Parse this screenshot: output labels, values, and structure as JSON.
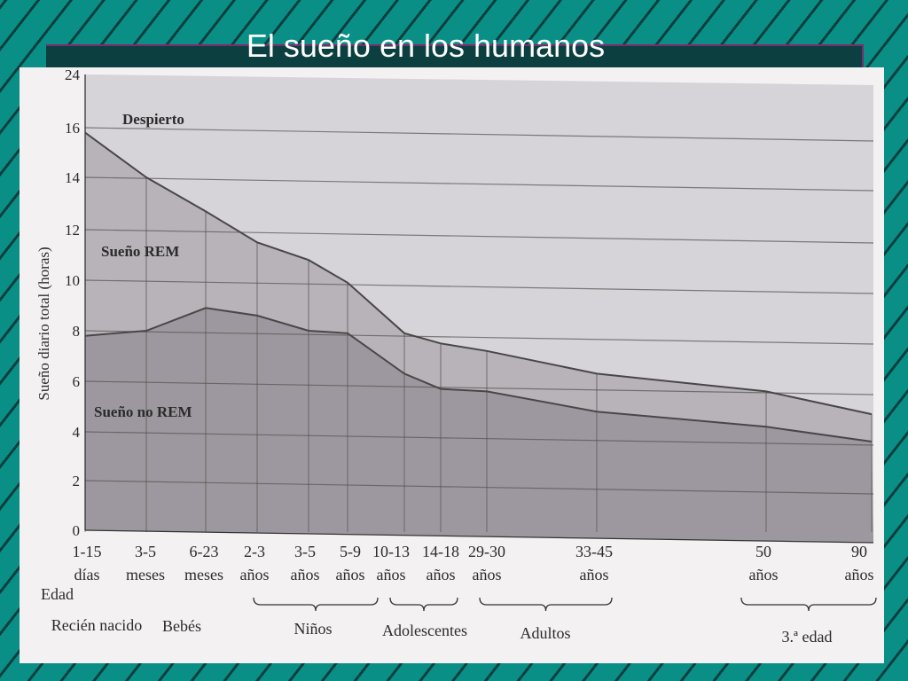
{
  "slide": {
    "title": "El sueño en los humanos"
  },
  "chart_data": {
    "type": "area",
    "ylabel": "Sueño diario total (horas)",
    "yticks": [
      0,
      2,
      4,
      6,
      8,
      10,
      12,
      14,
      16,
      24
    ],
    "x_axis_name": "Edad",
    "categories": [
      {
        "l1": "1-15",
        "l2": "días"
      },
      {
        "l1": "3-5",
        "l2": "meses"
      },
      {
        "l1": "6-23",
        "l2": "meses"
      },
      {
        "l1": "2-3",
        "l2": "años"
      },
      {
        "l1": "3-5",
        "l2": "años"
      },
      {
        "l1": "5-9",
        "l2": "años"
      },
      {
        "l1": "10-13",
        "l2": "años"
      },
      {
        "l1": "14-18",
        "l2": "años"
      },
      {
        "l1": "29-30",
        "l2": "años"
      },
      {
        "l1": "33-45",
        "l2": "años"
      },
      {
        "l1": "50",
        "l2": "años"
      },
      {
        "l1": "90",
        "l2": "años"
      }
    ],
    "groups": [
      {
        "label": "Recién nacido"
      },
      {
        "label": "Bebés"
      },
      {
        "label": "Niños",
        "brace": true
      },
      {
        "label": "Adolescentes",
        "brace": true
      },
      {
        "label": "Adultos",
        "brace": true
      },
      {
        "label": "3.ª edad",
        "brace": true
      }
    ],
    "series": [
      {
        "name": "Sueño no REM",
        "values": [
          7.8,
          8.0,
          8.9,
          8.6,
          8.0,
          7.9,
          6.3,
          5.7,
          5.6,
          4.8,
          4.2,
          3.6
        ]
      },
      {
        "name": "Sueño REM",
        "values": [
          15.8,
          14.0,
          12.7,
          11.5,
          10.8,
          9.9,
          7.9,
          7.5,
          7.2,
          6.3,
          5.6,
          4.7
        ]
      }
    ],
    "regions": [
      {
        "label": "Despierto"
      },
      {
        "label": "Sueño REM"
      },
      {
        "label": "Sueño no REM"
      }
    ],
    "colors": {
      "awake": "#d6d3d9",
      "rem": "#b7b3b9",
      "nrem": "#9d989f",
      "line": "#4a4648",
      "grid": "#56524f"
    }
  }
}
